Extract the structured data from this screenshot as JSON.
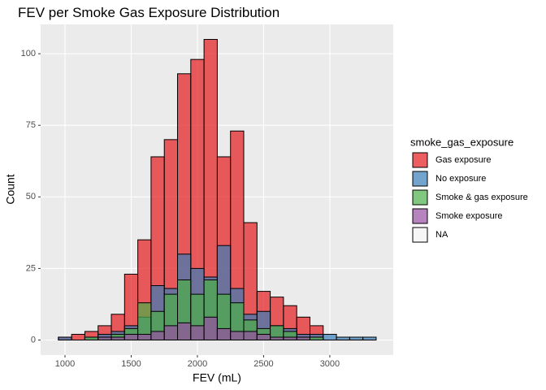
{
  "chart_data": {
    "type": "histogram",
    "title": "FEV per Smoke Gas Exposure Distribution",
    "x_label": "FEV (mL)",
    "y_label": "Count",
    "legend_title": "smoke_gas_exposure",
    "bins": [
      950,
      1050,
      1150,
      1250,
      1350,
      1450,
      1550,
      1650,
      1750,
      1850,
      1950,
      2050,
      2150,
      2250,
      2350,
      2450,
      2550,
      2650,
      2750,
      2850,
      2950,
      3050,
      3150,
      3250,
      3350
    ],
    "series": [
      {
        "name": "Gas exposure",
        "color": "#E41A1C",
        "values": [
          1,
          2,
          3,
          5,
          9,
          23,
          35,
          64,
          70,
          93,
          98,
          105,
          64,
          73,
          41,
          17,
          15,
          12,
          8,
          5,
          0,
          0,
          0,
          0
        ]
      },
      {
        "name": "No exposure",
        "color": "#377EB8",
        "values": [
          1,
          0,
          1,
          2,
          3,
          5,
          8,
          19,
          18,
          30,
          25,
          22,
          33,
          18,
          9,
          10,
          5,
          4,
          2,
          2,
          2,
          1,
          1,
          1
        ]
      },
      {
        "name": "Smoke & gas exposure",
        "color": "#4DAF4A",
        "values": [
          0,
          0,
          1,
          1,
          2,
          4,
          13,
          10,
          16,
          21,
          16,
          21,
          16,
          13,
          7,
          4,
          5,
          3,
          1,
          1,
          0,
          0,
          0,
          0
        ]
      },
      {
        "name": "Smoke exposure",
        "color": "#984EA3",
        "values": [
          0,
          0,
          0,
          1,
          1,
          2,
          2,
          3,
          5,
          6,
          5,
          8,
          4,
          3,
          3,
          2,
          1,
          1,
          1,
          0,
          0,
          0,
          0,
          0
        ]
      },
      {
        "name": "NA",
        "color": "#F2F2F2",
        "values": [
          0,
          0,
          0,
          0,
          0,
          0,
          0,
          0,
          0,
          0,
          0,
          0,
          0,
          0,
          0,
          0,
          0,
          0,
          0,
          0,
          0,
          0,
          0,
          0
        ]
      }
    ],
    "xlim": [
      816,
      3479
    ],
    "ylim": [
      -5.25,
      110.25
    ],
    "xticks": [
      1000,
      1500,
      2000,
      2500,
      3000
    ],
    "yticks": [
      0,
      25,
      50,
      75,
      100
    ],
    "grid": true,
    "legend_position": "right",
    "opacity": 0.7
  }
}
